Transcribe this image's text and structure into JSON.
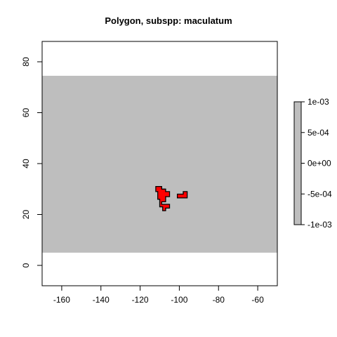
{
  "chart_data": {
    "type": "map-raster",
    "title": "Polygon, subspp: maculatum",
    "xlabel": "",
    "ylabel": "",
    "xlim": [
      -170,
      -50
    ],
    "ylim": [
      -8,
      88
    ],
    "x_ticks": [
      -160,
      -140,
      -120,
      -100,
      -80,
      -60
    ],
    "y_ticks": [
      0,
      20,
      40,
      60,
      80
    ],
    "background_raster": {
      "xmin": -170,
      "xmax": -50,
      "ymin": 5,
      "ymax": 74.5,
      "value": 0,
      "color": "#bebebe"
    },
    "polygon": {
      "fill": "#ff0000",
      "stroke": "#000000",
      "parts": [
        [
          [
            -112,
            31
          ],
          [
            -109,
            31
          ],
          [
            -109,
            30
          ],
          [
            -107,
            30
          ],
          [
            -107,
            29
          ],
          [
            -105,
            29
          ],
          [
            -105,
            27
          ],
          [
            -107,
            27
          ],
          [
            -107,
            25
          ],
          [
            -109,
            25
          ],
          [
            -109,
            24
          ],
          [
            -105,
            24
          ],
          [
            -105,
            22.5
          ],
          [
            -107,
            22.5
          ],
          [
            -107,
            21.5
          ],
          [
            -108.5,
            21.5
          ],
          [
            -108.5,
            23
          ],
          [
            -110,
            23
          ],
          [
            -110,
            26
          ],
          [
            -111,
            26
          ],
          [
            -111,
            29
          ],
          [
            -112,
            29
          ]
        ],
        [
          [
            -98,
            29
          ],
          [
            -96,
            29
          ],
          [
            -96,
            26.5
          ],
          [
            -101,
            26.5
          ],
          [
            -101,
            28
          ],
          [
            -98,
            28
          ]
        ]
      ]
    },
    "legend": {
      "position": "right",
      "color": "#bebebe",
      "labels": [
        "1e-03",
        "5e-04",
        "0e+00",
        "-5e-04",
        "-1e-03"
      ],
      "values": [
        0.001,
        0.0005,
        0,
        -0.0005,
        -0.001
      ]
    }
  }
}
